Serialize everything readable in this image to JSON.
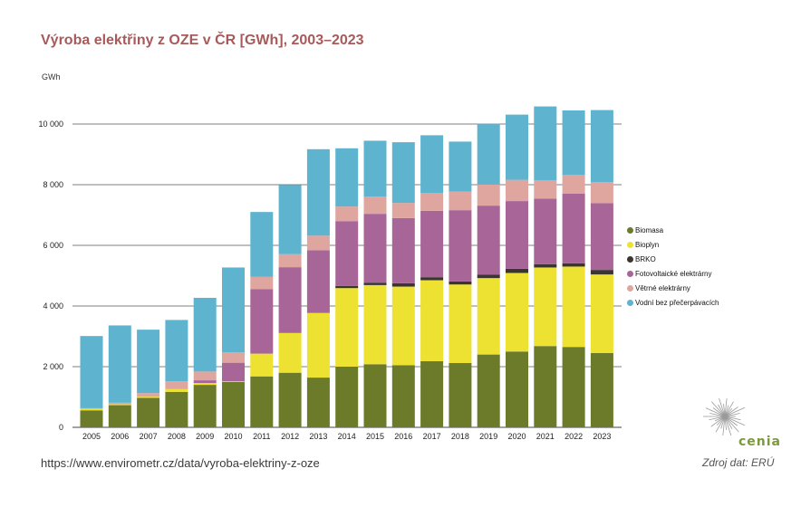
{
  "title": "Výroba elektřiny z OZE v ČR [GWh], 2003–2023",
  "url": "https://www.envirometr.cz/data/vyroba-elektriny-z-oze",
  "source": "Zdroj dat: ERÚ",
  "logo_text": "cenia",
  "chart_data": {
    "type": "bar",
    "stacked": true,
    "ylabel": "GWh",
    "ylim": [
      0,
      10600
    ],
    "yticks": [
      0,
      2000,
      4000,
      6000,
      8000,
      10000
    ],
    "ytick_labels": [
      "0",
      "2 000",
      "4 000",
      "6 000",
      "8 000",
      "10 000"
    ],
    "grid": true,
    "legend_position": "right",
    "categories": [
      "2005",
      "2006",
      "2007",
      "2008",
      "2009",
      "2010",
      "2011",
      "2012",
      "2013",
      "2014",
      "2015",
      "2016",
      "2017",
      "2018",
      "2019",
      "2020",
      "2021",
      "2022",
      "2023"
    ],
    "series": [
      {
        "name": "Biomasa",
        "color": "#6b7b2a",
        "values": [
          560,
          730,
          970,
          1170,
          1400,
          1500,
          1680,
          1800,
          1640,
          2000,
          2080,
          2050,
          2180,
          2120,
          2400,
          2500,
          2680,
          2650,
          2450
        ]
      },
      {
        "name": "Bioplyn",
        "color": "#ede231",
        "values": [
          50,
          30,
          40,
          100,
          60,
          20,
          750,
          1310,
          2130,
          2590,
          2610,
          2590,
          2670,
          2590,
          2520,
          2590,
          2590,
          2650,
          2590
        ]
      },
      {
        "name": "BRKO",
        "color": "#3b3530",
        "values": [
          0,
          0,
          0,
          0,
          0,
          0,
          0,
          0,
          0,
          70,
          80,
          110,
          100,
          100,
          110,
          140,
          110,
          110,
          150
        ]
      },
      {
        "name": "Fotovoltaické elektrárny",
        "color": "#a86598",
        "values": [
          0,
          0,
          0,
          10,
          90,
          610,
          2130,
          2170,
          2070,
          2140,
          2270,
          2150,
          2190,
          2350,
          2280,
          2230,
          2160,
          2300,
          2200
        ]
      },
      {
        "name": "Větrné elektrárny",
        "color": "#dea69f",
        "values": [
          20,
          50,
          120,
          240,
          290,
          340,
          400,
          430,
          480,
          480,
          570,
          500,
          590,
          610,
          700,
          700,
          610,
          610,
          700
        ]
      },
      {
        "name": "Vodní bez přečerpávacích",
        "color": "#5eb3cf",
        "values": [
          2380,
          2550,
          2090,
          2020,
          2430,
          2800,
          2140,
          2280,
          2850,
          1920,
          1840,
          2000,
          1900,
          1650,
          2000,
          2150,
          2430,
          2130,
          2370
        ]
      }
    ]
  }
}
